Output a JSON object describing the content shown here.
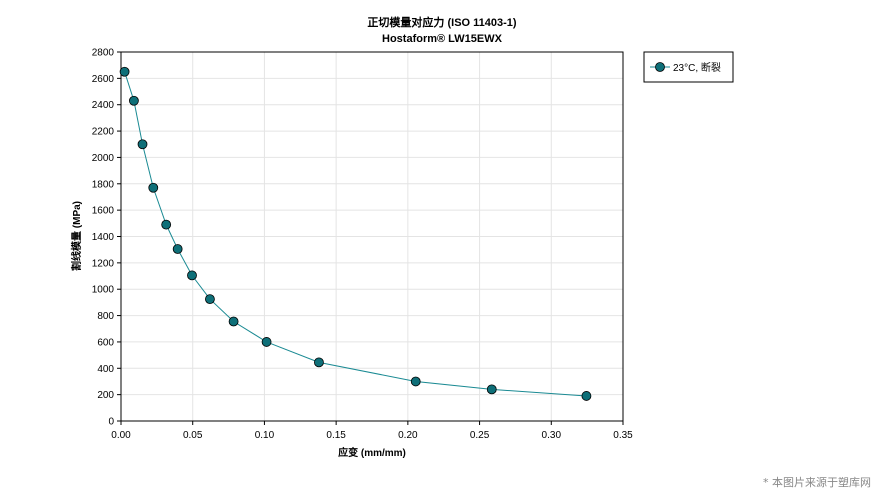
{
  "chart_data": {
    "type": "line",
    "title": "正切模量对应力 (ISO 11403-1)",
    "subtitle": "Hostaform® LW15EWX",
    "xlabel": "应变 (mm/mm)",
    "ylabel": "割线模量 (MPa)",
    "xlim": [
      0,
      0.35
    ],
    "ylim": [
      0,
      2800
    ],
    "xticks": [
      "0.00",
      "0.05",
      "0.10",
      "0.15",
      "0.20",
      "0.25",
      "0.30",
      "0.35"
    ],
    "yticks": [
      "0",
      "200",
      "400",
      "600",
      "800",
      "1000",
      "1200",
      "1400",
      "1600",
      "1800",
      "2000",
      "2200",
      "2400",
      "2600",
      "2800"
    ],
    "grid": true,
    "legend_position": "top-right, outside plot",
    "series": [
      {
        "name": "23°C, 断裂",
        "color": "#1a8a93",
        "marker_color": "#0e6f78",
        "x": [
          0.0025,
          0.009,
          0.015,
          0.0225,
          0.0315,
          0.0395,
          0.0495,
          0.062,
          0.0785,
          0.1015,
          0.138,
          0.2055,
          0.2585,
          0.3245
        ],
        "y": [
          2650,
          2430,
          2100,
          1770,
          1490,
          1305,
          1105,
          925,
          755,
          600,
          445,
          300,
          240,
          190
        ]
      }
    ]
  },
  "watermark": "* 本图片来源于塑库网"
}
